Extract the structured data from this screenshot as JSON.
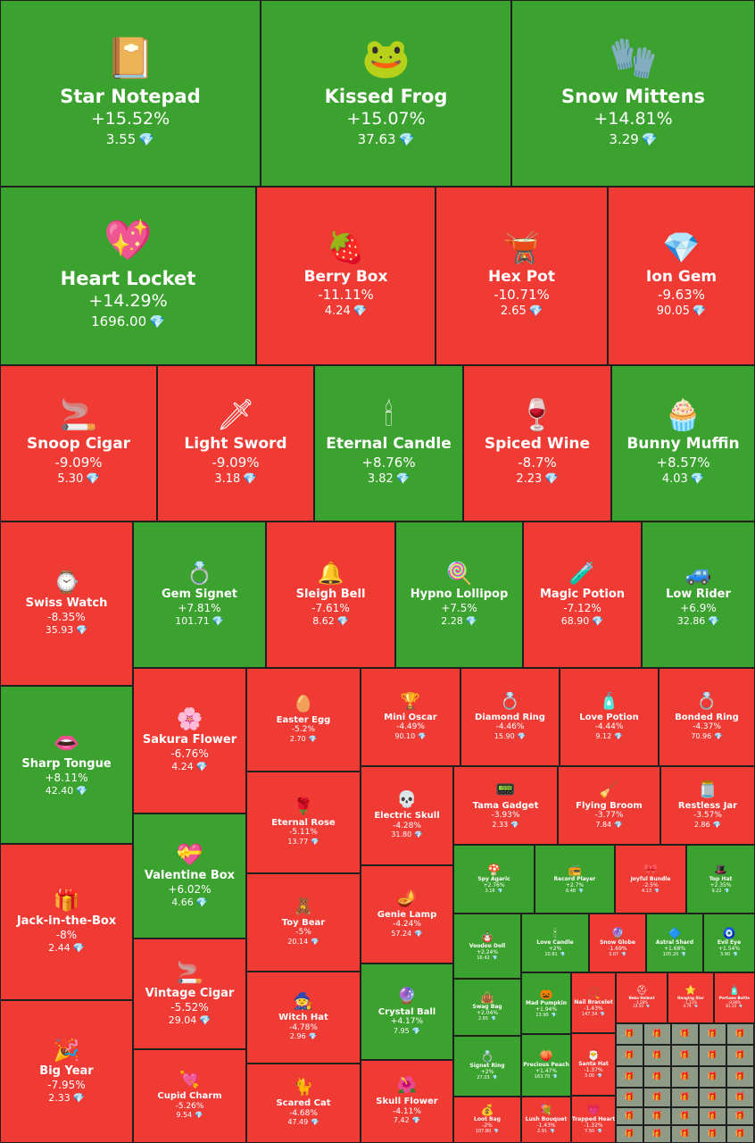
{
  "chart_data": {
    "type": "treemap",
    "currency_icon": "diamond-gem-icon",
    "colors": {
      "positive": "#3ca22f",
      "negative": "#f03b35",
      "neutral": "#8f9a87"
    },
    "items": [
      {
        "name": "Star Notepad",
        "change": "+15.52%",
        "change_value": 15.52,
        "price": "3.55",
        "icon": "notepad-icon"
      },
      {
        "name": "Kissed Frog",
        "change": "+15.07%",
        "change_value": 15.07,
        "price": "37.63",
        "icon": "frog-icon"
      },
      {
        "name": "Snow Mittens",
        "change": "+14.81%",
        "change_value": 14.81,
        "price": "3.29",
        "icon": "mittens-icon"
      },
      {
        "name": "Heart Locket",
        "change": "+14.29%",
        "change_value": 14.29,
        "price": "1696.00",
        "icon": "heart-locket-icon"
      },
      {
        "name": "Berry Box",
        "change": "-11.11%",
        "change_value": -11.11,
        "price": "4.24",
        "icon": "berry-box-icon"
      },
      {
        "name": "Hex Pot",
        "change": "-10.71%",
        "change_value": -10.71,
        "price": "2.65",
        "icon": "cauldron-icon"
      },
      {
        "name": "Ion Gem",
        "change": "-9.63%",
        "change_value": -9.63,
        "price": "90.05",
        "icon": "ion-gem-icon"
      },
      {
        "name": "Snoop Cigar",
        "change": "-9.09%",
        "change_value": -9.09,
        "price": "5.30",
        "icon": "cigar-icon"
      },
      {
        "name": "Light Sword",
        "change": "-9.09%",
        "change_value": -9.09,
        "price": "3.18",
        "icon": "light-sword-icon"
      },
      {
        "name": "Eternal Candle",
        "change": "+8.76%",
        "change_value": 8.76,
        "price": "3.82",
        "icon": "candle-icon"
      },
      {
        "name": "Spiced Wine",
        "change": "-8.7%",
        "change_value": -8.7,
        "price": "2.23",
        "icon": "wine-icon"
      },
      {
        "name": "Bunny Muffin",
        "change": "+8.57%",
        "change_value": 8.57,
        "price": "4.03",
        "icon": "muffin-icon"
      },
      {
        "name": "Swiss Watch",
        "change": "-8.35%",
        "change_value": -8.35,
        "price": "35.93",
        "icon": "watch-icon"
      },
      {
        "name": "Gem Signet",
        "change": "+7.81%",
        "change_value": 7.81,
        "price": "101.71",
        "icon": "ring-icon"
      },
      {
        "name": "Sleigh Bell",
        "change": "-7.61%",
        "change_value": -7.61,
        "price": "8.62",
        "icon": "bell-icon"
      },
      {
        "name": "Hypno Lollipop",
        "change": "+7.5%",
        "change_value": 7.5,
        "price": "2.28",
        "icon": "lollipop-icon"
      },
      {
        "name": "Magic Potion",
        "change": "-7.12%",
        "change_value": -7.12,
        "price": "68.90",
        "icon": "potion-icon"
      },
      {
        "name": "Low Rider",
        "change": "+6.9%",
        "change_value": 6.9,
        "price": "32.86",
        "icon": "car-icon"
      },
      {
        "name": "Sharp Tongue",
        "change": "+8.11%",
        "change_value": 8.11,
        "price": "42.40",
        "icon": "lips-icon"
      },
      {
        "name": "Sakura Flower",
        "change": "-6.76%",
        "change_value": -6.76,
        "price": "4.24",
        "icon": "sakura-icon"
      },
      {
        "name": "Easter Egg",
        "change": "-5.2%",
        "change_value": -5.2,
        "price": "2.70",
        "icon": "easter-egg-icon"
      },
      {
        "name": "Mini Oscar",
        "change": "-4.49%",
        "change_value": -4.49,
        "price": "90.10",
        "icon": "trophy-icon"
      },
      {
        "name": "Diamond Ring",
        "change": "-4.46%",
        "change_value": -4.46,
        "price": "15.90",
        "icon": "diamond-ring-icon"
      },
      {
        "name": "Love Potion",
        "change": "-4.44%",
        "change_value": -4.44,
        "price": "9.12",
        "icon": "love-potion-icon"
      },
      {
        "name": "Bonded Ring",
        "change": "-4.37%",
        "change_value": -4.37,
        "price": "70.96",
        "icon": "bonded-ring-icon"
      },
      {
        "name": "Eternal Rose",
        "change": "-5.11%",
        "change_value": -5.11,
        "price": "13.77",
        "icon": "rose-icon"
      },
      {
        "name": "Electric Skull",
        "change": "-4.28%",
        "change_value": -4.28,
        "price": "31.80",
        "icon": "skull-icon"
      },
      {
        "name": "Tama Gadget",
        "change": "-3.93%",
        "change_value": -3.93,
        "price": "2.33",
        "icon": "gadget-icon"
      },
      {
        "name": "Flying Broom",
        "change": "-3.77%",
        "change_value": -3.77,
        "price": "7.84",
        "icon": "broom-icon"
      },
      {
        "name": "Restless Jar",
        "change": "-3.57%",
        "change_value": -3.57,
        "price": "2.86",
        "icon": "jar-icon"
      },
      {
        "name": "Jack-in-the-Box",
        "change": "-8%",
        "change_value": -8,
        "price": "2.44",
        "icon": "gift-box-icon"
      },
      {
        "name": "Valentine Box",
        "change": "+6.02%",
        "change_value": 6.02,
        "price": "4.66",
        "icon": "valentine-box-icon"
      },
      {
        "name": "Toy Bear",
        "change": "-5%",
        "change_value": -5,
        "price": "20.14",
        "icon": "teddy-bear-icon"
      },
      {
        "name": "Genie Lamp",
        "change": "-4.24%",
        "change_value": -4.24,
        "price": "57.24",
        "icon": "lamp-icon"
      },
      {
        "name": "Spy Agaric",
        "change": "+2.76%",
        "change_value": 2.76,
        "price": "3.16",
        "icon": "mushroom-icon"
      },
      {
        "name": "Record Player",
        "change": "+2.7%",
        "change_value": 2.7,
        "price": "6.48",
        "icon": "record-player-icon"
      },
      {
        "name": "Joyful Bundle",
        "change": "-2.5%",
        "change_value": -2.5,
        "price": "4.13",
        "icon": "bundle-icon"
      },
      {
        "name": "Top Hat",
        "change": "+2.35%",
        "change_value": 2.35,
        "price": "9.22",
        "icon": "top-hat-icon"
      },
      {
        "name": "Voodoo Doll",
        "change": "+2.24%",
        "change_value": 2.24,
        "price": "16.42",
        "icon": "doll-icon"
      },
      {
        "name": "Love Candle",
        "change": "+2%",
        "change_value": 2,
        "price": "10.81",
        "icon": "love-candle-icon"
      },
      {
        "name": "Snow Globe",
        "change": "-1.69%",
        "change_value": -1.69,
        "price": "3.07",
        "icon": "snow-globe-icon"
      },
      {
        "name": "Astral Shard",
        "change": "+1.68%",
        "change_value": 1.68,
        "price": "105.20",
        "icon": "shard-icon"
      },
      {
        "name": "Evil Eye",
        "change": "+1.54%",
        "change_value": 1.54,
        "price": "3.90",
        "icon": "evil-eye-icon"
      },
      {
        "name": "Big Year",
        "change": "-7.95%",
        "change_value": -7.95,
        "price": "2.33",
        "icon": "year-icon"
      },
      {
        "name": "Vintage Cigar",
        "change": "-5.52%",
        "change_value": -5.52,
        "price": "29.04",
        "icon": "vintage-cigar-icon"
      },
      {
        "name": "Witch Hat",
        "change": "-4.78%",
        "change_value": -4.78,
        "price": "2.96",
        "icon": "witch-hat-icon"
      },
      {
        "name": "Crystal Ball",
        "change": "+4.17%",
        "change_value": 4.17,
        "price": "7.95",
        "icon": "crystal-ball-icon"
      },
      {
        "name": "Swag Bag",
        "change": "+2.04%",
        "change_value": 2.04,
        "price": "2.65",
        "icon": "bag-icon"
      },
      {
        "name": "Mad Pumpkin",
        "change": "+1.94%",
        "change_value": 1.94,
        "price": "13.90",
        "icon": "pumpkin-icon"
      },
      {
        "name": "Nail Bracelet",
        "change": "-1.43%",
        "change_value": -1.43,
        "price": "147.34",
        "icon": "bracelet-icon"
      },
      {
        "name": "Neko Helmet",
        "change": "-1.28%",
        "change_value": -1.28,
        "price": "24.50",
        "icon": "helmet-icon"
      },
      {
        "name": "Hanging Star",
        "change": "-1.11%",
        "change_value": -1.11,
        "price": "4.79",
        "icon": "star-icon"
      },
      {
        "name": "Perfume Bottle",
        "change": "-0.96%",
        "change_value": -0.96,
        "price": "81.10",
        "icon": "perfume-icon"
      },
      {
        "name": "Signet Ring",
        "change": "+2%",
        "change_value": 2,
        "price": "27.03",
        "icon": "signet-ring-icon"
      },
      {
        "name": "Precious Peach",
        "change": "+1.47%",
        "change_value": 1.47,
        "price": "163.70",
        "icon": "peach-icon"
      },
      {
        "name": "Santa Hat",
        "change": "-1.37%",
        "change_value": -1.37,
        "price": "3.00",
        "icon": "santa-hat-icon"
      },
      {
        "name": "Cupid Charm",
        "change": "-5.26%",
        "change_value": -5.26,
        "price": "9.54",
        "icon": "cupid-charm-icon"
      },
      {
        "name": "Scared Cat",
        "change": "-4.68%",
        "change_value": -4.68,
        "price": "47.49",
        "icon": "cat-icon"
      },
      {
        "name": "Skull Flower",
        "change": "-4.11%",
        "change_value": -4.11,
        "price": "7.42",
        "icon": "skull-flower-icon"
      },
      {
        "name": "Loot Bag",
        "change": "-2%",
        "change_value": -2,
        "price": "107.80",
        "icon": "loot-bag-icon"
      },
      {
        "name": "Lush Bouquet",
        "change": "-1.43%",
        "change_value": -1.43,
        "price": "2.91",
        "icon": "bouquet-icon"
      },
      {
        "name": "Trapped Heart",
        "change": "-1.32%",
        "change_value": -1.32,
        "price": "7.50",
        "icon": "trapped-heart-icon"
      }
    ]
  }
}
